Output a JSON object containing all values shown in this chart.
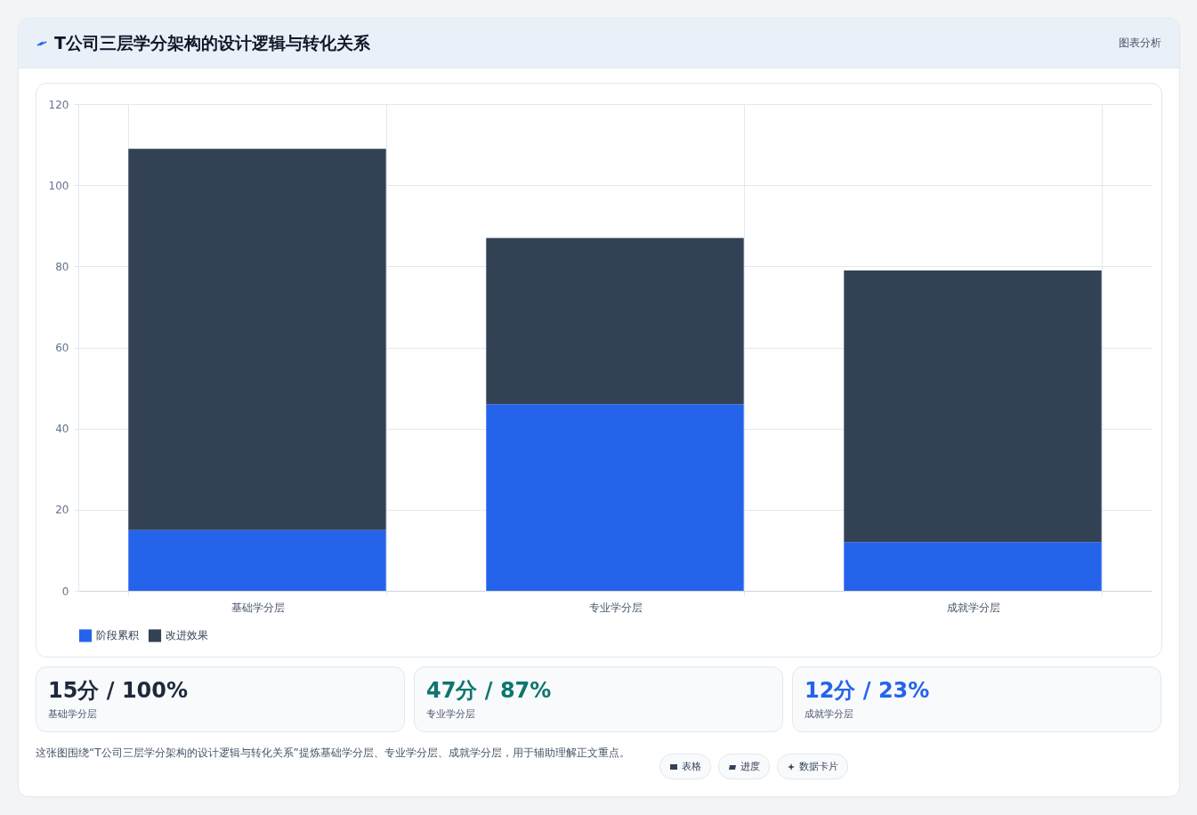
{
  "chart_data": {
    "type": "bar",
    "title": "T公司三层学分架构的设计逻辑与转化关系",
    "stacked": true,
    "categories": [
      "基础学分层",
      "专业学分层",
      "成就学分层"
    ],
    "series": [
      {
        "name": "阶段累积",
        "color": "#2563eb",
        "values": [
          15,
          46,
          12
        ]
      },
      {
        "name": "改进效果",
        "color": "#334155",
        "values": [
          94,
          41,
          67
        ]
      }
    ],
    "ylim": [
      0,
      120
    ],
    "yticks": [
      0,
      20,
      40,
      60,
      80,
      100,
      120
    ],
    "grid": true,
    "legend": "bottom",
    "annotations": [
      "图表分析",
      "15分 / 100%",
      "基础学分层",
      "47分 / 87%",
      "专业学分层",
      "12分 / 23%",
      "成就学分层",
      "这张图围绕“T公司三层学分架构的设计逻辑与转化关系”提炼基础学分层、专业学分层、成就学分层，用于辅助理解正文重点。",
      "表格",
      "进度",
      "数据卡片"
    ]
  }
}
